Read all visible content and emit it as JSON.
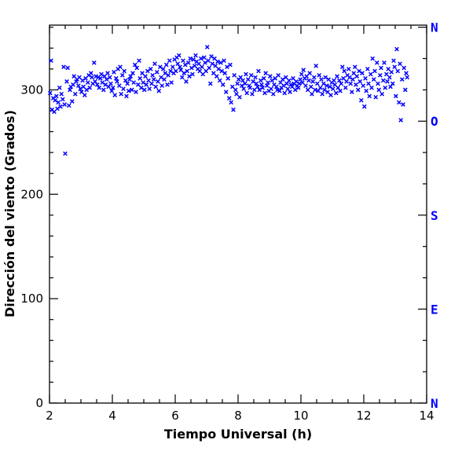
{
  "chart_data": {
    "type": "scatter",
    "xlabel": "Tiempo Universal (h)",
    "ylabel": "Dirección del viento (Grados)",
    "xlim": [
      2,
      14
    ],
    "ylim": [
      0,
      362
    ],
    "xticks": [
      2,
      4,
      6,
      8,
      10,
      12,
      14
    ],
    "yticks": [
      0,
      100,
      200,
      300
    ],
    "marker": "x",
    "grid": false,
    "colors": {
      "points": "#0000ff",
      "compass": "#0000ff",
      "axes": "#000000"
    },
    "compass_labels": [
      {
        "label": "N",
        "value": 360
      },
      {
        "label": "O",
        "value": 270
      },
      {
        "label": "S",
        "value": 180
      },
      {
        "label": "E",
        "value": 90
      },
      {
        "label": "N",
        "value": 0
      }
    ],
    "series": [
      {
        "x": [
          2.02,
          2.05,
          2.08,
          2.12,
          2.15,
          2.18,
          2.22,
          2.25,
          2.28,
          2.32,
          2.35,
          2.38,
          2.42,
          2.45,
          2.48,
          2.5,
          2.55,
          2.58,
          2.62,
          2.65,
          2.68,
          2.72,
          2.75,
          2.78,
          2.82,
          2.85,
          2.88,
          2.92,
          2.95,
          2.98,
          3.02,
          3.05,
          3.08,
          3.12,
          3.15,
          3.18,
          3.22,
          3.25,
          3.28,
          3.32,
          3.35,
          3.38,
          3.42,
          3.45,
          3.48,
          3.52,
          3.55,
          3.58,
          3.62,
          3.65,
          3.68,
          3.72,
          3.75,
          3.78,
          3.82,
          3.85,
          3.88,
          3.92,
          3.95,
          3.98,
          4.02,
          4.05,
          4.08,
          4.12,
          4.15,
          4.18,
          4.22,
          4.25,
          4.28,
          4.32,
          4.35,
          4.38,
          4.42,
          4.45,
          4.48,
          4.52,
          4.55,
          4.58,
          4.62,
          4.65,
          4.68,
          4.72,
          4.75,
          4.78,
          4.82,
          4.85,
          4.88,
          4.92,
          4.95,
          4.98,
          5.02,
          5.05,
          5.08,
          5.12,
          5.15,
          5.18,
          5.22,
          5.25,
          5.28,
          5.32,
          5.35,
          5.38,
          5.42,
          5.45,
          5.48,
          5.52,
          5.55,
          5.58,
          5.62,
          5.65,
          5.68,
          5.72,
          5.75,
          5.78,
          5.82,
          5.85,
          5.88,
          5.92,
          5.95,
          5.98,
          6.02,
          6.05,
          6.08,
          6.12,
          6.15,
          6.18,
          6.22,
          6.25,
          6.28,
          6.32,
          6.35,
          6.38,
          6.42,
          6.45,
          6.48,
          6.52,
          6.55,
          6.58,
          6.62,
          6.65,
          6.68,
          6.72,
          6.75,
          6.78,
          6.82,
          6.85,
          6.88,
          6.92,
          6.95,
          6.98,
          7.02,
          7.05,
          7.08,
          7.12,
          7.15,
          7.18,
          7.22,
          7.25,
          7.28,
          7.32,
          7.35,
          7.38,
          7.42,
          7.45,
          7.48,
          7.52,
          7.55,
          7.58,
          7.62,
          7.65,
          7.68,
          7.72,
          7.75,
          7.78,
          7.82,
          7.85,
          7.88,
          7.92,
          7.95,
          7.98,
          8.02,
          8.05,
          8.08,
          8.12,
          8.15,
          8.18,
          8.22,
          8.25,
          8.28,
          8.32,
          8.35,
          8.38,
          8.42,
          8.45,
          8.48,
          8.52,
          8.55,
          8.58,
          8.62,
          8.65,
          8.68,
          8.72,
          8.75,
          8.78,
          8.82,
          8.85,
          8.88,
          8.92,
          8.95,
          8.98,
          9.02,
          9.05,
          9.08,
          9.12,
          9.15,
          9.18,
          9.22,
          9.25,
          9.28,
          9.32,
          9.35,
          9.38,
          9.42,
          9.45,
          9.48,
          9.52,
          9.55,
          9.58,
          9.62,
          9.65,
          9.68,
          9.72,
          9.75,
          9.78,
          9.82,
          9.85,
          9.88,
          9.92,
          9.95,
          9.98,
          10.02,
          10.05,
          10.08,
          10.12,
          10.15,
          10.18,
          10.22,
          10.25,
          10.28,
          10.32,
          10.35,
          10.38,
          10.42,
          10.45,
          10.48,
          10.52,
          10.55,
          10.58,
          10.62,
          10.65,
          10.68,
          10.72,
          10.75,
          10.78,
          10.82,
          10.85,
          10.88,
          10.92,
          10.95,
          10.98,
          11.02,
          11.05,
          11.08,
          11.12,
          11.15,
          11.18,
          11.22,
          11.25,
          11.28,
          11.32,
          11.35,
          11.38,
          11.42,
          11.45,
          11.48,
          11.52,
          11.55,
          11.58,
          11.62,
          11.65,
          11.68,
          11.72,
          11.75,
          11.78,
          11.82,
          11.85,
          11.88,
          11.92,
          11.95,
          11.98,
          12.02,
          12.05,
          12.08,
          12.12,
          12.15,
          12.18,
          12.22,
          12.25,
          12.28,
          12.32,
          12.35,
          12.38,
          12.42,
          12.45,
          12.48,
          12.52,
          12.55,
          12.58,
          12.62,
          12.65,
          12.68,
          12.72,
          12.75,
          12.78,
          12.82,
          12.85,
          12.88,
          12.92,
          12.95,
          12.98,
          13.02,
          13.05,
          13.08,
          13.12,
          13.15,
          13.18,
          13.22,
          13.25,
          13.28,
          13.32,
          13.35,
          13.38
        ],
        "y": [
          297,
          328,
          281,
          292,
          279,
          290,
          294,
          282,
          288,
          302,
          284,
          296,
          291,
          322,
          286,
          239,
          308,
          321,
          285,
          300,
          303,
          289,
          305,
          313,
          296,
          308,
          310,
          304,
          312,
          301,
          298,
          309,
          303,
          295,
          311,
          300,
          307,
          314,
          302,
          316,
          312,
          306,
          326,
          308,
          313,
          305,
          312,
          302,
          311,
          315,
          307,
          300,
          313,
          305,
          310,
          316,
          303,
          312,
          306,
          299,
          302,
          317,
          295,
          311,
          308,
          320,
          304,
          322,
          296,
          314,
          301,
          318,
          309,
          294,
          306,
          299,
          310,
          313,
          300,
          316,
          307,
          324,
          298,
          321,
          305,
          328,
          311,
          302,
          316,
          307,
          300,
          313,
          305,
          318,
          309,
          301,
          320,
          306,
          314,
          310,
          325,
          303,
          317,
          308,
          299,
          322,
          312,
          304,
          320,
          310,
          316,
          324,
          305,
          314,
          328,
          318,
          307,
          322,
          316,
          329,
          318,
          331,
          325,
          333,
          322,
          319,
          312,
          328,
          316,
          324,
          308,
          318,
          326,
          313,
          330,
          321,
          315,
          329,
          323,
          333,
          327,
          320,
          325,
          318,
          330,
          322,
          315,
          331,
          326,
          318,
          341,
          328,
          321,
          306,
          332,
          325,
          316,
          330,
          323,
          313,
          327,
          320,
          309,
          326,
          318,
          305,
          328,
          316,
          298,
          322,
          311,
          292,
          324,
          288,
          303,
          281,
          314,
          300,
          296,
          306,
          310,
          293,
          312,
          304,
          309,
          301,
          306,
          315,
          297,
          310,
          304,
          302,
          314,
          296,
          308,
          300,
          312,
          306,
          303,
          318,
          300,
          309,
          305,
          302,
          311,
          297,
          316,
          304,
          307,
          299,
          313,
          301,
          309,
          296,
          305,
          311,
          303,
          300,
          314,
          299,
          307,
          302,
          310,
          304,
          297,
          312,
          306,
          301,
          309,
          298,
          305,
          303,
          311,
          306,
          300,
          308,
          304,
          302,
          306,
          310,
          315,
          307,
          319,
          311,
          304,
          313,
          300,
          309,
          316,
          303,
          296,
          308,
          312,
          300,
          323,
          306,
          299,
          314,
          302,
          310,
          296,
          306,
          300,
          312,
          304,
          298,
          310,
          303,
          295,
          307,
          301,
          309,
          305,
          297,
          313,
          302,
          309,
          299,
          306,
          322,
          311,
          318,
          302,
          308,
          314,
          320,
          312,
          306,
          298,
          310,
          316,
          322,
          305,
          313,
          300,
          318,
          308,
          290,
          316,
          304,
          284,
          311,
          299,
          320,
          306,
          294,
          315,
          302,
          330,
          310,
          318,
          293,
          326,
          306,
          300,
          314,
          321,
          296,
          309,
          326,
          302,
          315,
          308,
          320,
          312,
          303,
          317,
          306,
          328,
          322,
          294,
          339,
          318,
          288,
          325,
          271,
          310,
          286,
          321,
          300,
          316,
          312
        ]
      }
    ]
  }
}
